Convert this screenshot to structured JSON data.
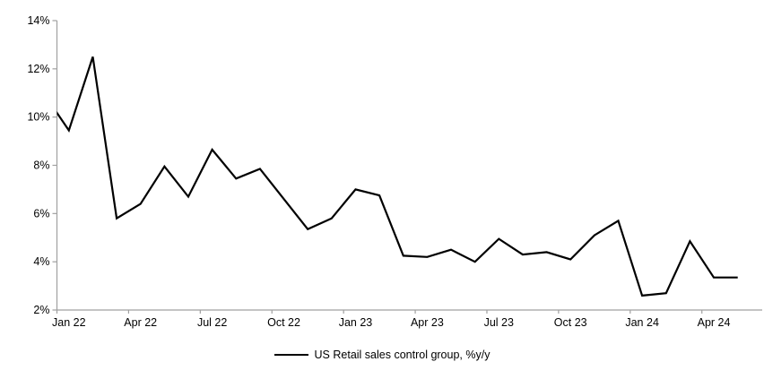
{
  "chart_data": {
    "type": "line",
    "title": "",
    "legend": "US Retail sales control group, %y/y",
    "legend_position": "bottom",
    "grid": false,
    "background": "#ffffff",
    "line_color": "#000000",
    "axis_color": "#a0a0a0",
    "y_axis": {
      "min": 2,
      "max": 14,
      "step": 2,
      "tick_labels": [
        "2%",
        "4%",
        "6%",
        "8%",
        "10%",
        "12%",
        "14%"
      ]
    },
    "x_axis": {
      "tick_labels": [
        "Jan 22",
        "Apr 22",
        "Jul 22",
        "Oct 22",
        "Jan 23",
        "Apr 23",
        "Jul 23",
        "Oct 23",
        "Jan 24",
        "Apr 24"
      ],
      "label_interval_months": 3
    },
    "series": [
      {
        "name": "US Retail sales control group, %y/y",
        "x": [
          "Dec 21",
          "Jan 22",
          "Feb 22",
          "Mar 22",
          "Apr 22",
          "May 22",
          "Jun 22",
          "Jul 22",
          "Aug 22",
          "Sep 22",
          "Oct 22",
          "Nov 22",
          "Dec 22",
          "Jan 23",
          "Feb 23",
          "Mar 23",
          "Apr 23",
          "May 23",
          "Jun 23",
          "Jul 23",
          "Aug 23",
          "Sep 23",
          "Oct 23",
          "Nov 23",
          "Dec 23",
          "Jan 24",
          "Feb 24",
          "Mar 24",
          "Apr 24",
          "May 24"
        ],
        "values": [
          10.9,
          9.45,
          12.5,
          5.8,
          6.4,
          7.95,
          6.7,
          8.65,
          7.45,
          7.85,
          6.6,
          5.35,
          5.8,
          7.0,
          6.75,
          4.25,
          4.2,
          4.5,
          4.0,
          4.95,
          4.3,
          4.4,
          4.1,
          5.1,
          5.7,
          2.6,
          2.7,
          4.85,
          3.35,
          3.35
        ]
      }
    ]
  }
}
